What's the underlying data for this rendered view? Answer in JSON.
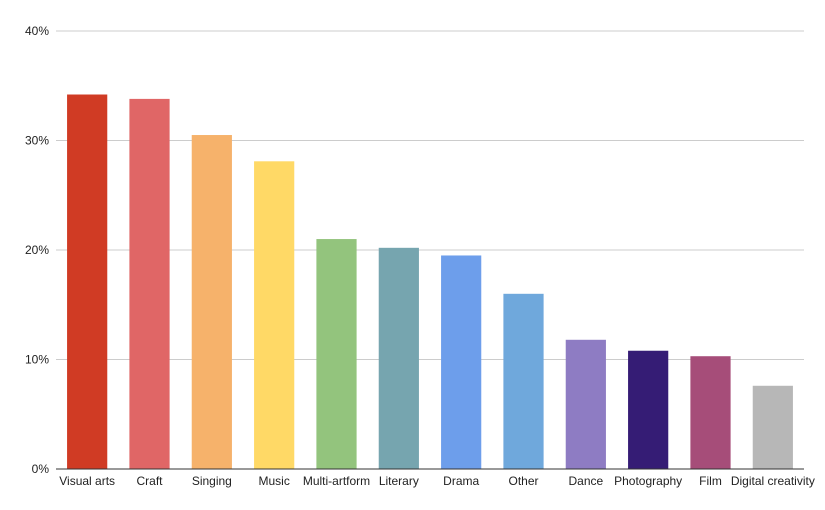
{
  "chart_data": {
    "type": "bar",
    "title": "",
    "xlabel": "",
    "ylabel": "",
    "categories": [
      "Visual arts",
      "Craft",
      "Singing",
      "Music",
      "Multi-artform",
      "Literary",
      "Drama",
      "Other",
      "Dance",
      "Photography",
      "Film",
      "Digital creativity"
    ],
    "values": [
      34.2,
      33.8,
      30.5,
      28.1,
      21.0,
      20.2,
      19.5,
      16.0,
      11.8,
      10.8,
      10.3,
      7.6
    ],
    "colors": [
      "#d03b24",
      "#e06666",
      "#f6b26b",
      "#ffd966",
      "#93c47d",
      "#76a5af",
      "#6d9eeb",
      "#6fa8dc",
      "#8e7cc3",
      "#351c75",
      "#a64d79",
      "#b7b7b7"
    ],
    "ylim": [
      0,
      40
    ],
    "yticks": [
      0,
      10,
      20,
      30,
      40
    ],
    "ytick_labels": [
      "0%",
      "10%",
      "20%",
      "30%",
      "40%"
    ],
    "grid": true,
    "legend": "none"
  }
}
